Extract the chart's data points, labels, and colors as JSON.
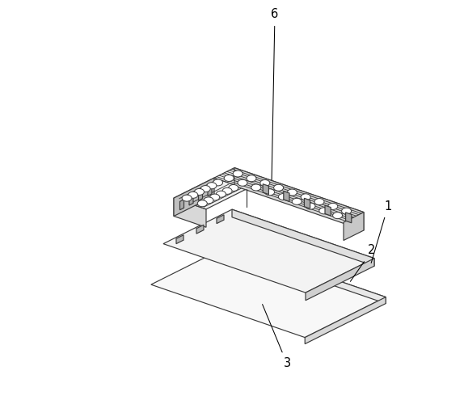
{
  "bg_color": "#ffffff",
  "line_color": "#3a3a3a",
  "lw": 0.85,
  "label_fontsize": 10.5
}
